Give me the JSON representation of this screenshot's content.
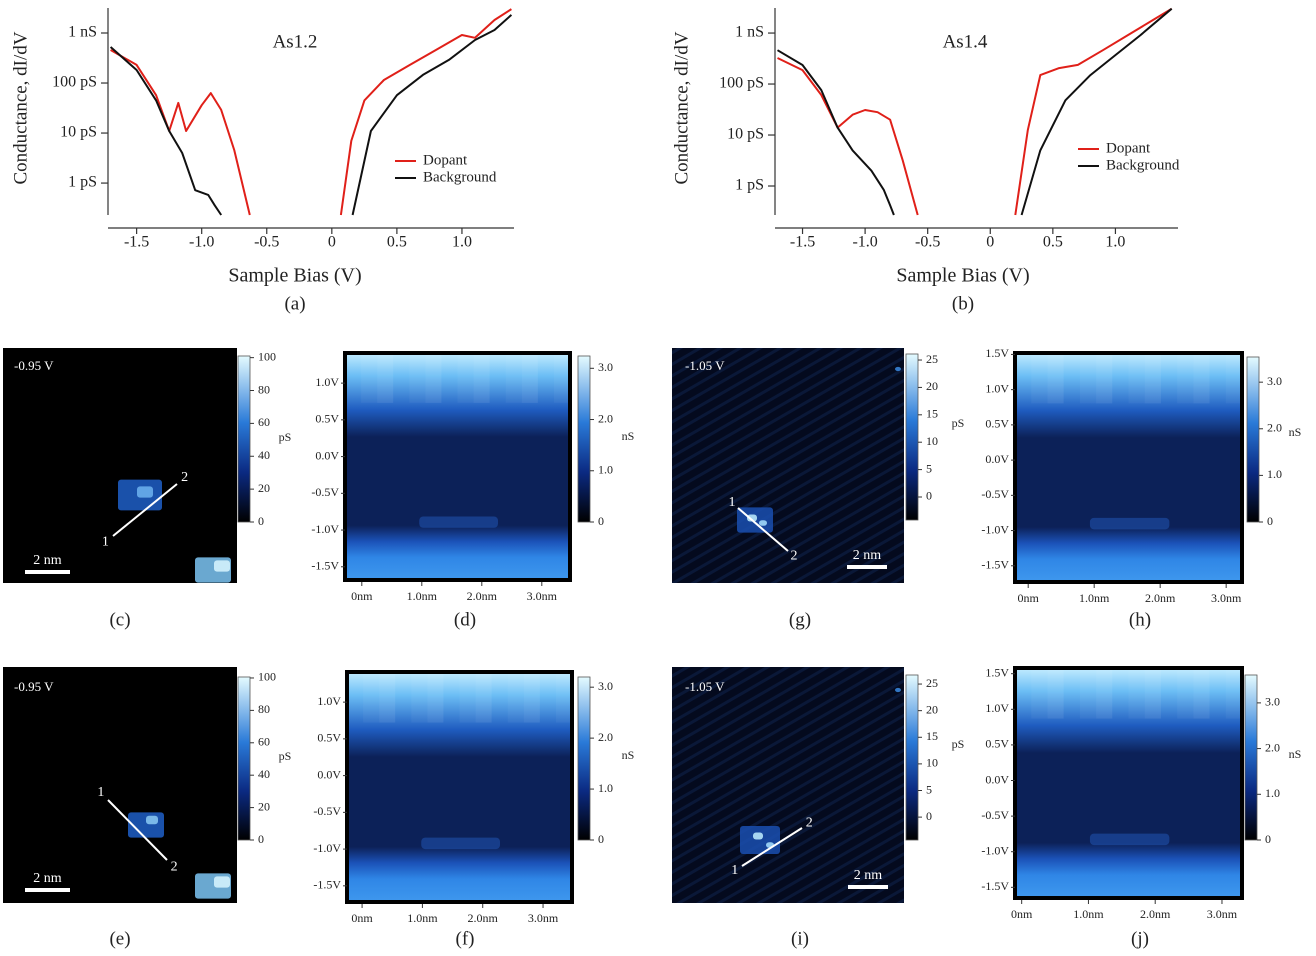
{
  "chart_data": [
    {
      "type": "line",
      "title": "As1.2",
      "xlabel": "Sample Bias (V)",
      "ylabel": "Conductance, dI/dV",
      "caption": "(a)",
      "log_y": true,
      "legend": "lower right",
      "xlim": [
        -1.72,
        1.4
      ],
      "xticks": [
        -1.5,
        {
          "value": -1,
          "label": "-1.0"
        },
        -0.5,
        0,
        0.5,
        {
          "value": 1,
          "label": "1.0"
        }
      ],
      "ylim": [
        0.23,
        3160
      ],
      "yticks": [
        {
          "value": 1,
          "label": "1 pS"
        },
        {
          "value": 10,
          "label": "10 pS"
        },
        {
          "value": 100,
          "label": "100 pS"
        },
        {
          "value": 1000,
          "label": "1 nS"
        }
      ],
      "series": [
        {
          "name": "Dopant",
          "color": "#e02019",
          "x": [
            -1.7,
            -1.5,
            -1.35,
            -1.25,
            -1.18,
            -1.12,
            -1.0,
            -0.93,
            -0.85,
            -0.75,
            -0.63,
            0,
            0.07,
            0.15,
            0.25,
            0.4,
            0.6,
            0.8,
            1.0,
            1.1,
            1.25,
            1.38
          ],
          "values": [
            457,
            230,
            57,
            11,
            40,
            11,
            36,
            63,
            29,
            4.6,
            0.23,
            null,
            0.23,
            7,
            45,
            115,
            230,
            457,
            912,
            800,
            1820,
            3000
          ]
        },
        {
          "name": "Background",
          "color": "#111111",
          "x": [
            -1.7,
            -1.5,
            -1.35,
            -1.25,
            -1.15,
            -1.05,
            -0.95,
            -0.9,
            -0.85,
            0,
            0.16,
            0.3,
            0.5,
            0.7,
            0.9,
            1.1,
            1.25,
            1.38
          ],
          "values": [
            525,
            182,
            45,
            11,
            4,
            0.72,
            0.58,
            0.36,
            0.23,
            null,
            0.23,
            11,
            57,
            145,
            290,
            725,
            1150,
            2300
          ]
        }
      ]
    },
    {
      "type": "line",
      "title": "As1.4",
      "xlabel": "Sample Bias (V)",
      "ylabel": "Conductance, dI/dV",
      "caption": "(b)",
      "log_y": true,
      "legend": "lower right",
      "xlim": [
        -1.72,
        1.5
      ],
      "xticks": [
        -1.5,
        {
          "value": -1,
          "label": "-1.0"
        },
        -0.5,
        0,
        0.5,
        {
          "value": 1,
          "label": "1.0"
        }
      ],
      "ylim": [
        0.27,
        3100
      ],
      "yticks": [
        {
          "value": 1,
          "label": "1 pS"
        },
        {
          "value": 10,
          "label": "10 pS"
        },
        {
          "value": 100,
          "label": "100 pS"
        },
        {
          "value": 1000,
          "label": "1 nS"
        }
      ],
      "series": [
        {
          "name": "Dopant",
          "color": "#e02019",
          "x": [
            -1.7,
            -1.5,
            -1.35,
            -1.22,
            -1.1,
            -1.0,
            -0.9,
            -0.8,
            -0.7,
            -0.58,
            0,
            0.2,
            0.3,
            0.4,
            0.55,
            0.7,
            0.9,
            1.1,
            1.3,
            1.45
          ],
          "values": [
            324,
            188,
            61,
            14,
            25,
            31,
            28,
            20,
            3.2,
            0.27,
            null,
            0.27,
            12.5,
            150,
            205,
            237,
            460,
            910,
            1800,
            3000
          ]
        },
        {
          "name": "Background",
          "color": "#111111",
          "x": [
            -1.7,
            -1.5,
            -1.35,
            -1.22,
            -1.1,
            -0.95,
            -0.85,
            -0.8,
            -0.77,
            0,
            0.25,
            0.4,
            0.6,
            0.8,
            1.0,
            1.2,
            1.45
          ],
          "values": [
            460,
            236,
            76,
            14,
            5,
            2,
            0.83,
            0.42,
            0.27,
            null,
            0.27,
            5,
            48,
            150,
            370,
            910,
            3000
          ]
        }
      ]
    },
    {
      "type": "image",
      "annotation": "-0.95 V",
      "scale_bar": "2 nm",
      "markers": [
        "1",
        "2"
      ],
      "caption": "(c)",
      "colorbar": {
        "label": "pS",
        "lim": [
          0,
          101
        ],
        "ticks": [
          0,
          20,
          40,
          60,
          80,
          100
        ]
      }
    },
    {
      "type": "heatmap",
      "caption": "(d)",
      "xlim": [
        -0.28,
        3.47
      ],
      "xticks": [
        {
          "value": 0,
          "label": "0nm"
        },
        {
          "value": 1,
          "label": "1.0nm"
        },
        {
          "value": 2,
          "label": "2.0nm"
        },
        {
          "value": 3,
          "label": "3.0nm"
        }
      ],
      "ylim": [
        -1.68,
        1.41
      ],
      "yticks": [
        {
          "value": 1,
          "label": "1.0V"
        },
        {
          "value": 0.5,
          "label": "0.5V"
        },
        {
          "value": 0,
          "label": "0.0V"
        },
        {
          "value": -0.5,
          "label": "-0.5V"
        },
        {
          "value": -1,
          "label": "-1.0V"
        },
        {
          "value": -1.5,
          "label": "-1.5V"
        }
      ],
      "colorbar": {
        "label": "nS",
        "lim": [
          0,
          3.24
        ],
        "ticks": [
          0,
          {
            "value": 1,
            "label": "1.0"
          },
          {
            "value": 2,
            "label": "2.0"
          },
          {
            "value": 3,
            "label": "3.0"
          }
        ]
      }
    },
    {
      "type": "image",
      "annotation": "-0.95 V",
      "scale_bar": "2 nm",
      "markers": [
        "1",
        "2"
      ],
      "caption": "(e)",
      "colorbar": {
        "label": "pS",
        "lim": [
          0,
          100.6
        ],
        "ticks": [
          0,
          20,
          40,
          60,
          80,
          100
        ]
      }
    },
    {
      "type": "heatmap",
      "caption": "(f)",
      "xlim": [
        -0.25,
        3.48
      ],
      "xticks": [
        {
          "value": 0,
          "label": "0nm"
        },
        {
          "value": 1,
          "label": "1.0nm"
        },
        {
          "value": 2,
          "label": "2.0nm"
        },
        {
          "value": 3,
          "label": "3.0nm"
        }
      ],
      "ylim": [
        -1.72,
        1.41
      ],
      "yticks": [
        {
          "value": 1,
          "label": "1.0V"
        },
        {
          "value": 0.5,
          "label": "0.5V"
        },
        {
          "value": 0,
          "label": "0.0V"
        },
        {
          "value": -0.5,
          "label": "-0.5V"
        },
        {
          "value": -1,
          "label": "-1.0V"
        },
        {
          "value": -1.5,
          "label": "-1.5V"
        }
      ],
      "colorbar": {
        "label": "nS",
        "lim": [
          0,
          3.2
        ],
        "ticks": [
          0,
          {
            "value": 1,
            "label": "1.0"
          },
          {
            "value": 2,
            "label": "2.0"
          },
          {
            "value": 3,
            "label": "3.0"
          }
        ]
      }
    },
    {
      "type": "image",
      "annotation": "-1.05 V",
      "scale_bar": "2 nm",
      "markers": [
        "1",
        "2"
      ],
      "caption": "(g)",
      "colorbar": {
        "label": "pS",
        "lim": [
          -4.2,
          26.1
        ],
        "ticks": [
          0,
          5,
          10,
          15,
          20,
          25
        ]
      }
    },
    {
      "type": "heatmap",
      "caption": "(h)",
      "xlim": [
        -0.2,
        3.24
      ],
      "xticks": [
        {
          "value": 0,
          "label": "0nm"
        },
        {
          "value": 1,
          "label": "1.0nm"
        },
        {
          "value": 2,
          "label": "2.0nm"
        },
        {
          "value": 3,
          "label": "3.0nm"
        }
      ],
      "ylim": [
        -1.73,
        1.52
      ],
      "yticks": [
        {
          "value": 1.5,
          "label": "1.5V"
        },
        {
          "value": 1,
          "label": "1.0V"
        },
        {
          "value": 0.5,
          "label": "0.5V"
        },
        {
          "value": 0,
          "label": "0.0V"
        },
        {
          "value": -0.5,
          "label": "-0.5V"
        },
        {
          "value": -1,
          "label": "-1.0V"
        },
        {
          "value": -1.5,
          "label": "-1.5V"
        }
      ],
      "colorbar": {
        "label": "nS",
        "lim": [
          0,
          3.54
        ],
        "ticks": [
          0,
          {
            "value": 1,
            "label": "1.0"
          },
          {
            "value": 2,
            "label": "2.0"
          },
          {
            "value": 3,
            "label": "3.0"
          }
        ]
      }
    },
    {
      "type": "image",
      "annotation": "-1.05 V",
      "scale_bar": "2 nm",
      "markers": [
        "1",
        "2"
      ],
      "caption": "(i)",
      "colorbar": {
        "label": "pS",
        "lim": [
          -4.3,
          26.7
        ],
        "ticks": [
          0,
          5,
          10,
          15,
          20,
          25
        ]
      }
    },
    {
      "type": "heatmap",
      "caption": "(j)",
      "xlim": [
        -0.1,
        3.3
      ],
      "xticks": [
        {
          "value": 0,
          "label": "0nm"
        },
        {
          "value": 1,
          "label": "1.0nm"
        },
        {
          "value": 2,
          "label": "2.0nm"
        },
        {
          "value": 3,
          "label": "3.0nm"
        }
      ],
      "ylim": [
        -1.65,
        1.58
      ],
      "yticks": [
        {
          "value": 1.5,
          "label": "1.5V"
        },
        {
          "value": 1,
          "label": "1.0V"
        },
        {
          "value": 0.5,
          "label": "0.5V"
        },
        {
          "value": 0,
          "label": "0.0V"
        },
        {
          "value": -0.5,
          "label": "-0.5V"
        },
        {
          "value": -1,
          "label": "-1.0V"
        },
        {
          "value": -1.5,
          "label": "-1.5V"
        }
      ],
      "colorbar": {
        "label": "nS",
        "lim": [
          0,
          3.61
        ],
        "ticks": [
          0,
          {
            "value": 1,
            "label": "1.0"
          },
          {
            "value": 2,
            "label": "2.0"
          },
          {
            "value": 3,
            "label": "3.0"
          }
        ]
      }
    }
  ]
}
